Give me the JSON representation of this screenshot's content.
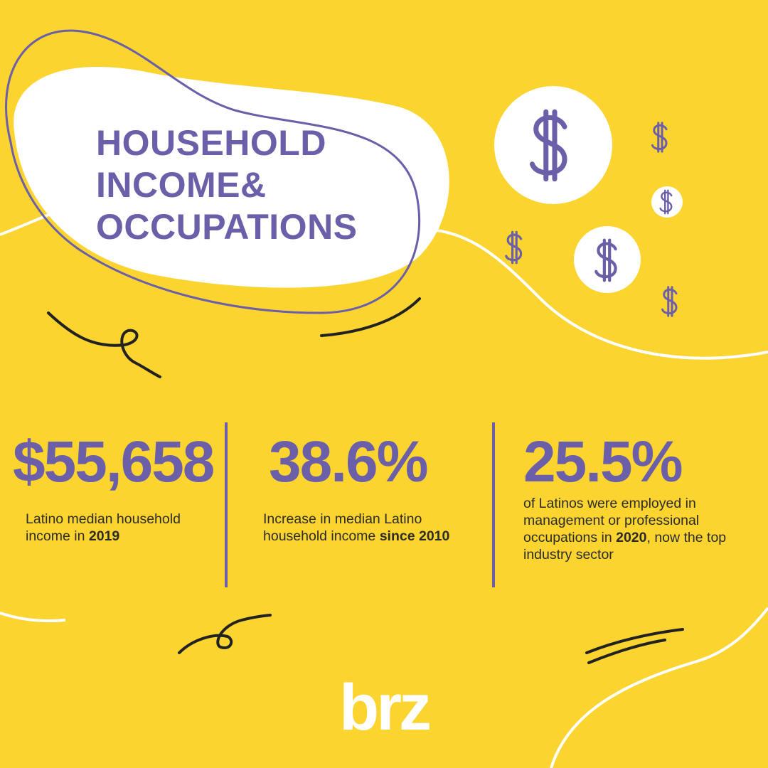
{
  "header": {
    "title_lines": [
      "HOUSEHOLD",
      "INCOME&",
      "OCCUPATIONS"
    ]
  },
  "stats": [
    {
      "value": "$55,658",
      "description": [
        {
          "text": "Latino median household income in "
        },
        {
          "text": "2019",
          "bold": true
        }
      ]
    },
    {
      "value": "38.6%",
      "description": [
        {
          "text": "Increase in median Latino household income "
        },
        {
          "text": "since 2010",
          "bold": true
        }
      ]
    },
    {
      "value": "25.5%",
      "description": [
        {
          "text": "of Latinos were employed in management or professional occupations in "
        },
        {
          "text": "2020",
          "bold": true
        },
        {
          "text": ", now the top industry sector"
        }
      ]
    }
  ],
  "logo": "brz"
}
